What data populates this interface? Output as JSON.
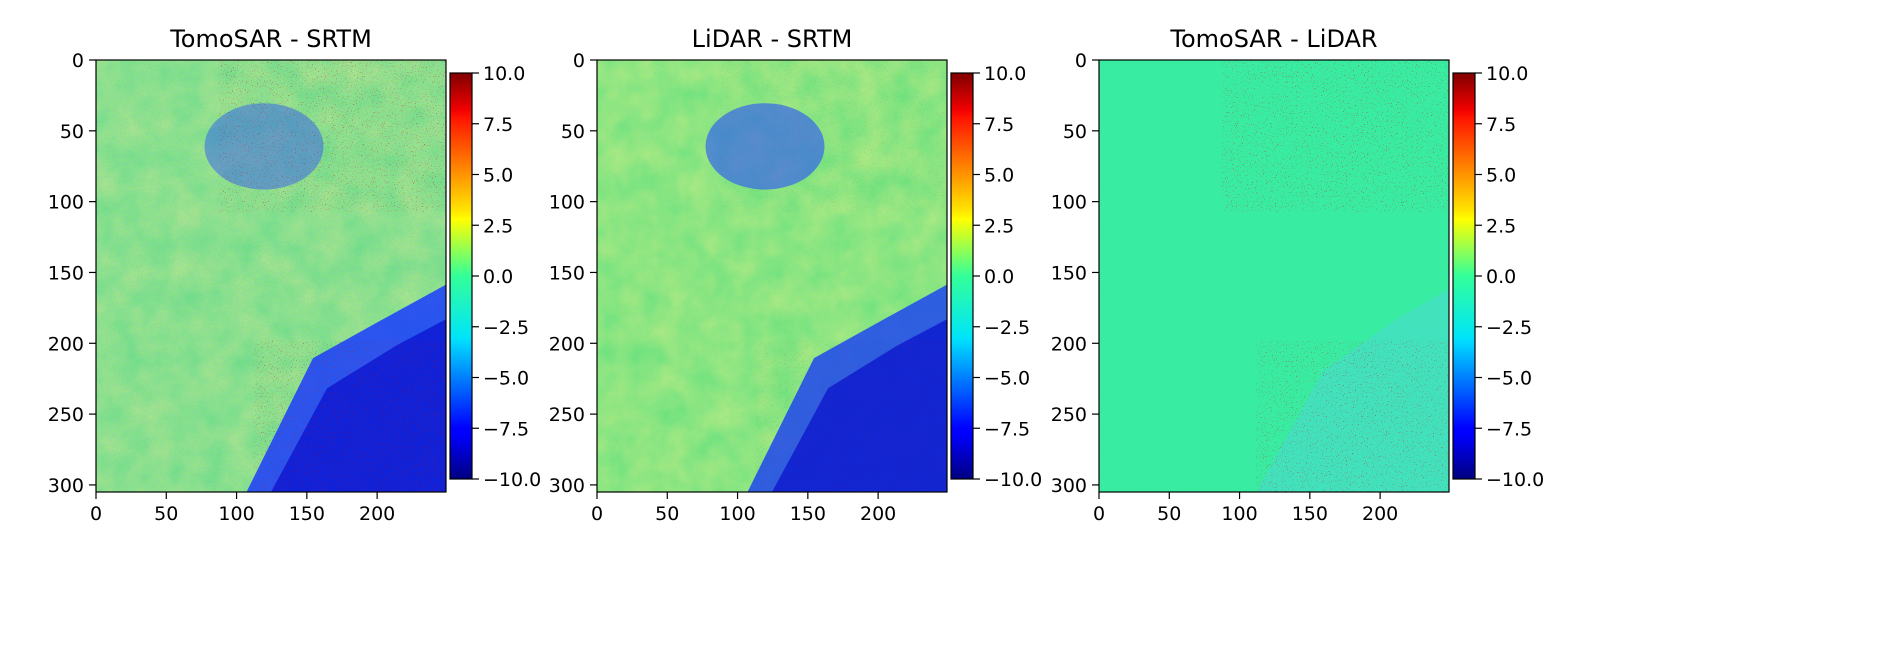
{
  "chart_data": [
    {
      "type": "heatmap",
      "title": "TomoSAR - SRTM",
      "xlabel": "",
      "ylabel": "",
      "x_ticks": [
        0,
        50,
        100,
        150,
        200
      ],
      "y_ticks": [
        0,
        50,
        100,
        150,
        200,
        250,
        300
      ],
      "xlim": [
        0,
        249
      ],
      "ylim": [
        305,
        0
      ],
      "colorbar": {
        "colormap": "jet",
        "range": [
          -10.0,
          10.0
        ],
        "ticks": [
          "10.0",
          "7.5",
          "5.0",
          "2.5",
          "0.0",
          "−2.5",
          "−5.0",
          "−7.5",
          "−10.0"
        ]
      },
      "grid": false
    },
    {
      "type": "heatmap",
      "title": "LiDAR - SRTM",
      "xlabel": "",
      "ylabel": "",
      "x_ticks": [
        0,
        50,
        100,
        150,
        200
      ],
      "y_ticks": [
        0,
        50,
        100,
        150,
        200,
        250,
        300
      ],
      "xlim": [
        0,
        249
      ],
      "ylim": [
        305,
        0
      ],
      "colorbar": {
        "colormap": "jet",
        "range": [
          -10.0,
          10.0
        ],
        "ticks": [
          "10.0",
          "7.5",
          "5.0",
          "2.5",
          "0.0",
          "−2.5",
          "−5.0",
          "−7.5",
          "−10.0"
        ]
      },
      "grid": false
    },
    {
      "type": "heatmap",
      "title": "TomoSAR - LiDAR",
      "xlabel": "",
      "ylabel": "",
      "x_ticks": [
        0,
        50,
        100,
        150,
        200
      ],
      "y_ticks": [
        0,
        50,
        100,
        150,
        200,
        250,
        300
      ],
      "xlim": [
        0,
        249
      ],
      "ylim": [
        305,
        0
      ],
      "colorbar": {
        "colormap": "jet",
        "range": [
          -10.0,
          10.0
        ],
        "ticks": [
          "10.0",
          "7.5",
          "5.0",
          "2.5",
          "0.0",
          "−2.5",
          "−5.0",
          "−7.5",
          "−10.0"
        ]
      },
      "grid": false
    }
  ]
}
